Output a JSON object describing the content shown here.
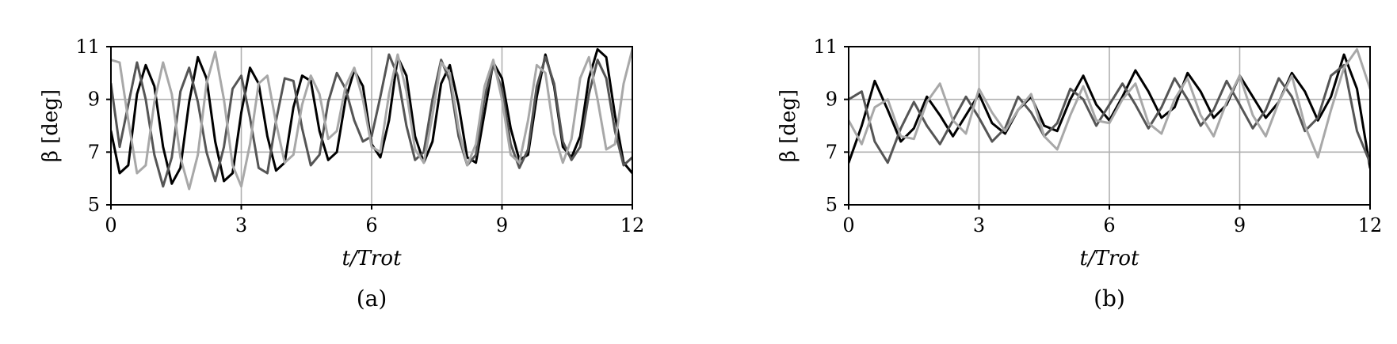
{
  "chart_data": [
    {
      "type": "line",
      "panel_label": "(a)",
      "xlabel": "t/Trot",
      "ylabel": "β [deg]",
      "xlim": [
        0,
        12
      ],
      "ylim": [
        5,
        11
      ],
      "xticks": [
        0,
        3,
        6,
        9,
        12
      ],
      "yticks": [
        5,
        7,
        9,
        11
      ],
      "grid": true,
      "series": [
        {
          "color": "#000000",
          "x": [
            0,
            0.2,
            0.4,
            0.6,
            0.8,
            1.0,
            1.2,
            1.4,
            1.6,
            1.8,
            2.0,
            2.2,
            2.4,
            2.6,
            2.8,
            3.0,
            3.2,
            3.4,
            3.6,
            3.8,
            4.0,
            4.2,
            4.4,
            4.6,
            4.8,
            5.0,
            5.2,
            5.4,
            5.6,
            5.8,
            6.0,
            6.2,
            6.4,
            6.6,
            6.8,
            7.0,
            7.2,
            7.4,
            7.6,
            7.8,
            8.0,
            8.2,
            8.4,
            8.6,
            8.8,
            9.0,
            9.2,
            9.4,
            9.6,
            9.8,
            10.0,
            10.2,
            10.4,
            10.6,
            10.8,
            11.0,
            11.2,
            11.4,
            11.6,
            11.8,
            12.0
          ],
          "y": [
            7.8,
            6.2,
            6.5,
            9.2,
            10.3,
            9.5,
            7.2,
            5.8,
            6.4,
            8.9,
            10.6,
            9.8,
            7.4,
            5.9,
            6.2,
            8.5,
            10.2,
            9.6,
            7.6,
            6.3,
            6.6,
            8.7,
            9.9,
            9.7,
            7.8,
            6.7,
            7.0,
            9.0,
            10.1,
            9.5,
            7.3,
            6.8,
            8.2,
            10.6,
            9.9,
            7.6,
            6.6,
            7.4,
            9.6,
            10.3,
            8.8,
            6.8,
            6.6,
            8.5,
            10.4,
            9.8,
            7.9,
            6.7,
            6.9,
            9.1,
            10.7,
            9.5,
            7.2,
            6.8,
            7.6,
            9.8,
            10.9,
            10.6,
            8.4,
            6.6,
            6.2
          ]
        },
        {
          "color": "#555555",
          "x": [
            0,
            0.2,
            0.4,
            0.6,
            0.8,
            1.0,
            1.2,
            1.4,
            1.6,
            1.8,
            2.0,
            2.2,
            2.4,
            2.6,
            2.8,
            3.0,
            3.2,
            3.4,
            3.6,
            3.8,
            4.0,
            4.2,
            4.4,
            4.6,
            4.8,
            5.0,
            5.2,
            5.4,
            5.6,
            5.8,
            6.0,
            6.2,
            6.4,
            6.6,
            6.8,
            7.0,
            7.2,
            7.4,
            7.6,
            7.8,
            8.0,
            8.2,
            8.4,
            8.6,
            8.8,
            9.0,
            9.2,
            9.4,
            9.6,
            9.8,
            10.0,
            10.2,
            10.4,
            10.6,
            10.8,
            11.0,
            11.2,
            11.4,
            11.6,
            11.8,
            12.0
          ],
          "y": [
            9.6,
            7.2,
            8.8,
            10.4,
            9.0,
            6.9,
            5.7,
            6.8,
            9.3,
            10.2,
            8.9,
            7.0,
            5.9,
            7.2,
            9.4,
            9.9,
            8.3,
            6.4,
            6.2,
            8.2,
            9.8,
            9.7,
            7.9,
            6.5,
            6.9,
            8.9,
            10.0,
            9.4,
            8.2,
            7.4,
            7.6,
            9.1,
            10.7,
            9.9,
            8.0,
            6.7,
            7.0,
            9.0,
            10.5,
            9.7,
            7.6,
            6.5,
            6.9,
            9.1,
            10.3,
            9.4,
            7.3,
            6.4,
            7.1,
            9.5,
            10.6,
            9.6,
            7.4,
            6.7,
            7.2,
            9.2,
            10.5,
            9.8,
            7.8,
            6.5,
            6.8
          ]
        },
        {
          "color": "#a8a8a8",
          "x": [
            0,
            0.2,
            0.4,
            0.6,
            0.8,
            1.0,
            1.2,
            1.4,
            1.6,
            1.8,
            2.0,
            2.2,
            2.4,
            2.6,
            2.8,
            3.0,
            3.2,
            3.4,
            3.6,
            3.8,
            4.0,
            4.2,
            4.4,
            4.6,
            4.8,
            5.0,
            5.2,
            5.4,
            5.6,
            5.8,
            6.0,
            6.2,
            6.4,
            6.6,
            6.8,
            7.0,
            7.2,
            7.4,
            7.6,
            7.8,
            8.0,
            8.2,
            8.4,
            8.6,
            8.8,
            9.0,
            9.2,
            9.4,
            9.6,
            9.8,
            10.0,
            10.2,
            10.4,
            10.6,
            10.8,
            11.0,
            11.2,
            11.4,
            11.6,
            11.8,
            12.0
          ],
          "y": [
            10.5,
            10.4,
            8.2,
            6.2,
            6.5,
            8.9,
            10.4,
            9.2,
            6.8,
            5.6,
            6.9,
            9.6,
            10.8,
            9.0,
            6.5,
            5.7,
            7.3,
            9.6,
            9.9,
            8.1,
            6.6,
            6.9,
            8.8,
            9.9,
            9.2,
            7.5,
            7.8,
            9.5,
            10.2,
            9.0,
            7.2,
            7.0,
            9.2,
            10.7,
            9.3,
            7.1,
            6.6,
            8.4,
            10.4,
            10.0,
            7.9,
            6.5,
            7.3,
            9.5,
            10.5,
            9.0,
            6.9,
            6.6,
            8.2,
            10.3,
            10.0,
            7.7,
            6.6,
            7.5,
            9.8,
            10.6,
            9.0,
            7.1,
            7.3,
            9.6,
            10.9
          ]
        }
      ]
    },
    {
      "type": "line",
      "panel_label": "(b)",
      "xlabel": "t/Trot",
      "ylabel": "β [deg]",
      "xlim": [
        0,
        12
      ],
      "ylim": [
        5,
        11
      ],
      "xticks": [
        0,
        3,
        6,
        9,
        12
      ],
      "yticks": [
        5,
        7,
        9,
        11
      ],
      "grid": true,
      "series": [
        {
          "color": "#000000",
          "x": [
            0,
            0.3,
            0.6,
            0.9,
            1.2,
            1.5,
            1.8,
            2.1,
            2.4,
            2.7,
            3.0,
            3.3,
            3.6,
            3.9,
            4.2,
            4.5,
            4.8,
            5.1,
            5.4,
            5.7,
            6.0,
            6.3,
            6.6,
            6.9,
            7.2,
            7.5,
            7.8,
            8.1,
            8.4,
            8.7,
            9.0,
            9.3,
            9.6,
            9.9,
            10.2,
            10.5,
            10.8,
            11.1,
            11.4,
            11.7,
            12.0
          ],
          "y": [
            6.6,
            8.0,
            9.7,
            8.6,
            7.4,
            7.9,
            9.1,
            8.4,
            7.6,
            8.4,
            9.2,
            8.1,
            7.7,
            8.6,
            9.1,
            8.0,
            7.8,
            9.0,
            9.9,
            8.8,
            8.2,
            9.1,
            10.1,
            9.3,
            8.3,
            8.7,
            10.0,
            9.3,
            8.3,
            8.8,
            9.9,
            9.1,
            8.3,
            8.9,
            10.0,
            9.3,
            8.2,
            9.1,
            10.7,
            9.4,
            6.4
          ]
        },
        {
          "color": "#555555",
          "x": [
            0,
            0.3,
            0.6,
            0.9,
            1.2,
            1.5,
            1.8,
            2.1,
            2.4,
            2.7,
            3.0,
            3.3,
            3.6,
            3.9,
            4.2,
            4.5,
            4.8,
            5.1,
            5.4,
            5.7,
            6.0,
            6.3,
            6.6,
            6.9,
            7.2,
            7.5,
            7.8,
            8.1,
            8.4,
            8.7,
            9.0,
            9.3,
            9.6,
            9.9,
            10.2,
            10.5,
            10.8,
            11.1,
            11.4,
            11.7,
            12.0
          ],
          "y": [
            9.0,
            9.3,
            7.4,
            6.6,
            7.9,
            8.9,
            8.0,
            7.3,
            8.2,
            9.1,
            8.3,
            7.4,
            7.9,
            9.1,
            8.5,
            7.6,
            8.1,
            9.4,
            9.0,
            8.0,
            8.8,
            9.6,
            8.8,
            7.9,
            8.7,
            9.8,
            9.0,
            8.0,
            8.6,
            9.7,
            8.8,
            7.9,
            8.6,
            9.8,
            9.1,
            7.8,
            8.3,
            9.9,
            10.3,
            7.8,
            6.6
          ]
        },
        {
          "color": "#a8a8a8",
          "x": [
            0,
            0.3,
            0.6,
            0.9,
            1.2,
            1.5,
            1.8,
            2.1,
            2.4,
            2.7,
            3.0,
            3.3,
            3.6,
            3.9,
            4.2,
            4.5,
            4.8,
            5.1,
            5.4,
            5.7,
            6.0,
            6.3,
            6.6,
            6.9,
            7.2,
            7.5,
            7.8,
            8.1,
            8.4,
            8.7,
            9.0,
            9.3,
            9.6,
            9.9,
            10.2,
            10.5,
            10.8,
            11.1,
            11.4,
            11.7,
            12.0
          ],
          "y": [
            8.2,
            7.3,
            8.7,
            9.0,
            7.6,
            7.5,
            8.9,
            9.6,
            8.2,
            7.7,
            9.4,
            8.5,
            7.8,
            8.6,
            9.2,
            7.6,
            7.1,
            8.4,
            9.5,
            8.2,
            8.1,
            9.0,
            9.6,
            8.1,
            7.7,
            9.0,
            9.8,
            8.4,
            7.6,
            8.9,
            9.9,
            8.4,
            7.6,
            8.9,
            9.9,
            8.0,
            6.8,
            8.6,
            10.2,
            10.9,
            9.4
          ]
        }
      ]
    }
  ]
}
